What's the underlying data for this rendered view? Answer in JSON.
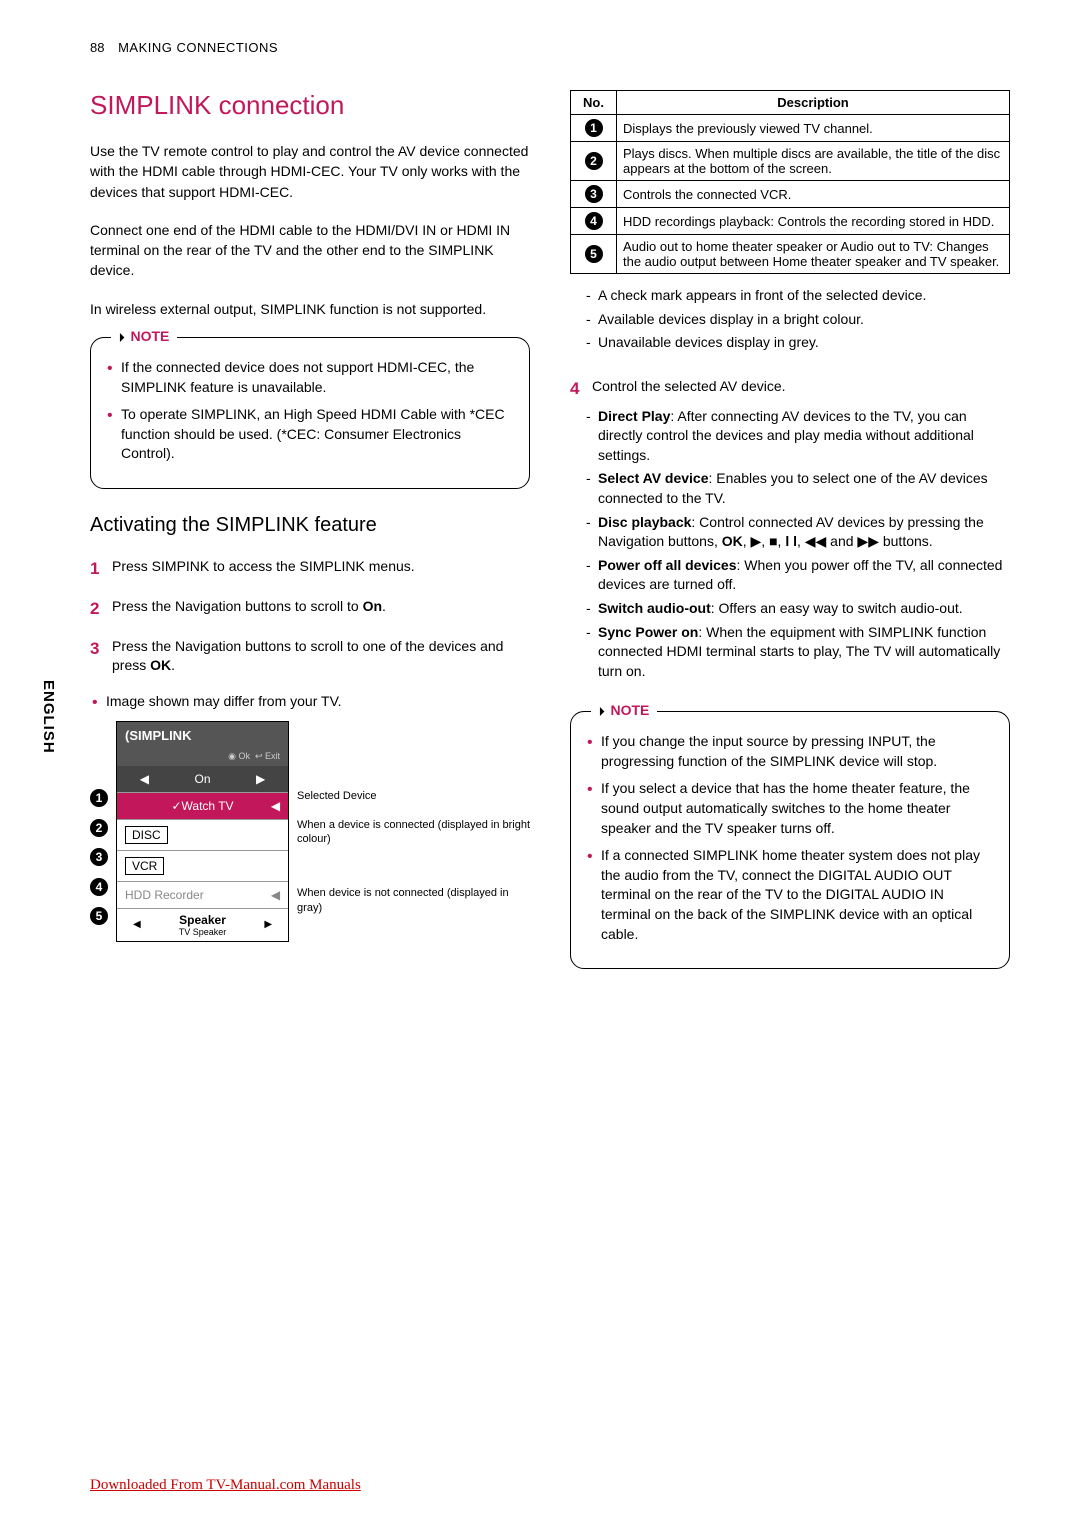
{
  "header": {
    "pageNum": "88",
    "section": "MAKING CONNECTIONS"
  },
  "languageTab": "ENGLISH",
  "title": "SIMPLINK connection",
  "intro1": "Use the TV remote control to play and control the AV device connected with the HDMI cable through HDMI-CEC. Your TV only works with the devices that support HDMI-CEC.",
  "intro2": "Connect one end of the HDMI cable to the HDMI/DVI IN or HDMI IN terminal on the rear of the TV and the other end to the SIMPLINK device.",
  "intro3": "In wireless external output, SIMPLINK function is not supported.",
  "note1": {
    "title": "NOTE",
    "items": [
      "If the connected device does not support HDMI-CEC, the SIMPLINK feature is unavailable.",
      "To operate SIMPLINK, an High Speed HDMI Cable with *CEC function should be used. (*CEC: Consumer Electronics Control)."
    ]
  },
  "subhead": "Activating the SIMPLINK feature",
  "steps": [
    "Press SIMPINK to access the SIMPLINK menus.",
    "Press the Navigation buttons to scroll to <b>On</b>.",
    "Press the Navigation buttons to scroll to one of the devices and press <b>OK</b>."
  ],
  "imageNote": "Image shown may differ from your TV.",
  "menu": {
    "logo": "SIMPLINK",
    "ok": "Ok",
    "exit": "Exit",
    "on": "On",
    "rows": [
      {
        "n": "1",
        "label": "Watch TV",
        "selected": true
      },
      {
        "n": "2",
        "label": "DISC",
        "boxed": true
      },
      {
        "n": "3",
        "label": "VCR",
        "boxed": true
      },
      {
        "n": "4",
        "label": "HDD Recorder",
        "disabled": true,
        "arrow": true
      },
      {
        "n": "5",
        "label": "Speaker",
        "sub": "TV Speaker",
        "nav": true
      }
    ]
  },
  "labels": {
    "l1": "Selected Device",
    "l2": "When a device is connected (displayed in bright colour)",
    "l3": "When device is not connected (displayed in gray)"
  },
  "table": {
    "h1": "No.",
    "h2": "Description",
    "rows": [
      {
        "n": "1",
        "d": "Displays the previously viewed TV channel."
      },
      {
        "n": "2",
        "d": "Plays discs. When multiple discs are available, the title of the disc appears at the bottom of the screen."
      },
      {
        "n": "3",
        "d": "Controls the connected VCR."
      },
      {
        "n": "4",
        "d": "HDD recordings playback: Controls the recording stored in HDD."
      },
      {
        "n": "5",
        "d": "Audio out to home theater speaker or Audio out to TV: Changes the audio output between Home theater speaker and TV speaker."
      }
    ]
  },
  "dashList1": [
    "A check mark appears in front of the selected device.",
    "Available devices display in a bright colour.",
    "Unavailable devices display in grey."
  ],
  "step4": {
    "num": "4",
    "text": "Control the selected AV device."
  },
  "dashList2": [
    "<b>Direct Play</b>: After connecting AV devices to the TV, you can directly control the devices and play media without additional settings.",
    "<b>Select AV device</b>: Enables you to select one of the AV devices connected to the TV.",
    "<b>Disc playback</b>: Control connected AV devices by pressing the Navigation buttons, <b>OK</b>, ▶, ■, <b>l l</b>, ◀◀ and ▶▶ buttons.",
    "<b>Power off all devices</b>: When you power off the TV, all connected devices are turned off.",
    "<b>Switch audio-out</b>: Offers an easy way to switch audio-out.",
    "<b>Sync Power on</b>: When the equipment with SIMPLINK function connected HDMI terminal starts to play, The TV will automatically turn on."
  ],
  "note2": {
    "title": "NOTE",
    "items": [
      "If you change the input source by pressing INPUT, the progressing function of the SIMPLINK device will stop.",
      "If you select a device that has the home theater feature, the sound output automatically switches to the home theater speaker and the TV speaker turns off.",
      "If a connected SIMPLINK home theater system does not play the audio from the TV, connect the DIGITAL AUDIO OUT terminal on the rear of the TV to the DIGITAL AUDIO IN terminal on the back of the SIMPLINK device with an optical cable."
    ]
  },
  "footer": "Downloaded From TV-Manual.com Manuals"
}
